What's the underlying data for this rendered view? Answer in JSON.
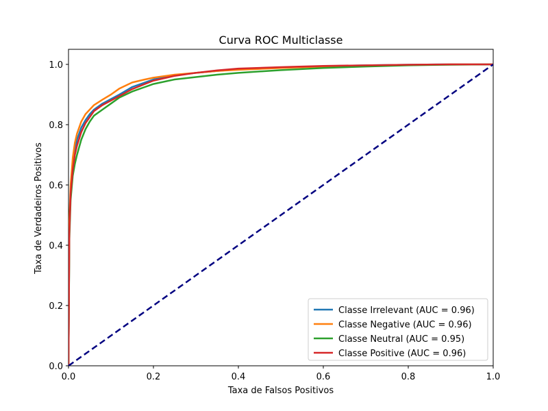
{
  "chart_data": {
    "type": "line",
    "title": "Curva ROC Multiclasse",
    "xlabel": "Taxa de Falsos Positivos",
    "ylabel": "Taxa de Verdadeiros Positivos",
    "xlim": [
      0.0,
      1.0
    ],
    "ylim": [
      0.0,
      1.05
    ],
    "xticks": [
      "0.0",
      "0.2",
      "0.4",
      "0.6",
      "0.8",
      "1.0"
    ],
    "yticks": [
      "0.0",
      "0.2",
      "0.4",
      "0.6",
      "0.8",
      "1.0"
    ],
    "grid": false,
    "legend_position": "lower-right",
    "series": [
      {
        "name": "Classe Irrelevant (AUC = 0.96)",
        "color": "#1f77b4",
        "x": [
          0,
          0.002,
          0.005,
          0.01,
          0.015,
          0.02,
          0.03,
          0.04,
          0.05,
          0.06,
          0.08,
          0.1,
          0.12,
          0.15,
          0.18,
          0.2,
          0.25,
          0.3,
          0.35,
          0.4,
          0.5,
          0.6,
          0.7,
          0.8,
          0.9,
          1.0
        ],
        "y": [
          0,
          0.45,
          0.58,
          0.66,
          0.71,
          0.75,
          0.79,
          0.815,
          0.835,
          0.85,
          0.87,
          0.885,
          0.9,
          0.925,
          0.94,
          0.95,
          0.963,
          0.972,
          0.978,
          0.984,
          0.99,
          0.994,
          0.997,
          0.999,
          1.0,
          1.0
        ]
      },
      {
        "name": "Classe Negative (AUC = 0.96)",
        "color": "#ff7f0e",
        "x": [
          0,
          0.002,
          0.005,
          0.01,
          0.015,
          0.02,
          0.03,
          0.04,
          0.05,
          0.06,
          0.08,
          0.1,
          0.12,
          0.15,
          0.18,
          0.2,
          0.25,
          0.3,
          0.35,
          0.4,
          0.5,
          0.6,
          0.7,
          0.8,
          0.9,
          1.0
        ],
        "y": [
          0,
          0.48,
          0.6,
          0.69,
          0.74,
          0.77,
          0.81,
          0.835,
          0.85,
          0.865,
          0.883,
          0.9,
          0.92,
          0.94,
          0.95,
          0.956,
          0.966,
          0.972,
          0.978,
          0.982,
          0.988,
          0.993,
          0.996,
          0.998,
          1.0,
          1.0
        ]
      },
      {
        "name": "Classe Neutral (AUC = 0.95)",
        "color": "#2ca02c",
        "x": [
          0,
          0.002,
          0.005,
          0.01,
          0.015,
          0.02,
          0.03,
          0.04,
          0.05,
          0.06,
          0.08,
          0.1,
          0.12,
          0.15,
          0.18,
          0.2,
          0.25,
          0.3,
          0.35,
          0.4,
          0.5,
          0.6,
          0.7,
          0.8,
          0.9,
          1.0
        ],
        "y": [
          0,
          0.42,
          0.55,
          0.63,
          0.67,
          0.7,
          0.75,
          0.785,
          0.81,
          0.83,
          0.85,
          0.87,
          0.89,
          0.91,
          0.925,
          0.935,
          0.95,
          0.958,
          0.966,
          0.972,
          0.981,
          0.988,
          0.993,
          0.997,
          0.999,
          1.0
        ]
      },
      {
        "name": "Classe Positive (AUC = 0.96)",
        "color": "#d62728",
        "x": [
          0,
          0.002,
          0.005,
          0.01,
          0.015,
          0.02,
          0.03,
          0.04,
          0.05,
          0.06,
          0.08,
          0.1,
          0.12,
          0.15,
          0.18,
          0.2,
          0.25,
          0.3,
          0.35,
          0.4,
          0.5,
          0.6,
          0.7,
          0.8,
          0.9,
          1.0
        ],
        "y": [
          0,
          0.44,
          0.57,
          0.65,
          0.7,
          0.73,
          0.775,
          0.805,
          0.825,
          0.845,
          0.865,
          0.88,
          0.895,
          0.918,
          0.935,
          0.946,
          0.962,
          0.972,
          0.98,
          0.986,
          0.991,
          0.995,
          0.997,
          0.999,
          1.0,
          1.0
        ]
      }
    ],
    "reference_line": {
      "x": [
        0,
        1
      ],
      "y": [
        0,
        1
      ],
      "color": "#000080",
      "style": "dashed"
    }
  }
}
